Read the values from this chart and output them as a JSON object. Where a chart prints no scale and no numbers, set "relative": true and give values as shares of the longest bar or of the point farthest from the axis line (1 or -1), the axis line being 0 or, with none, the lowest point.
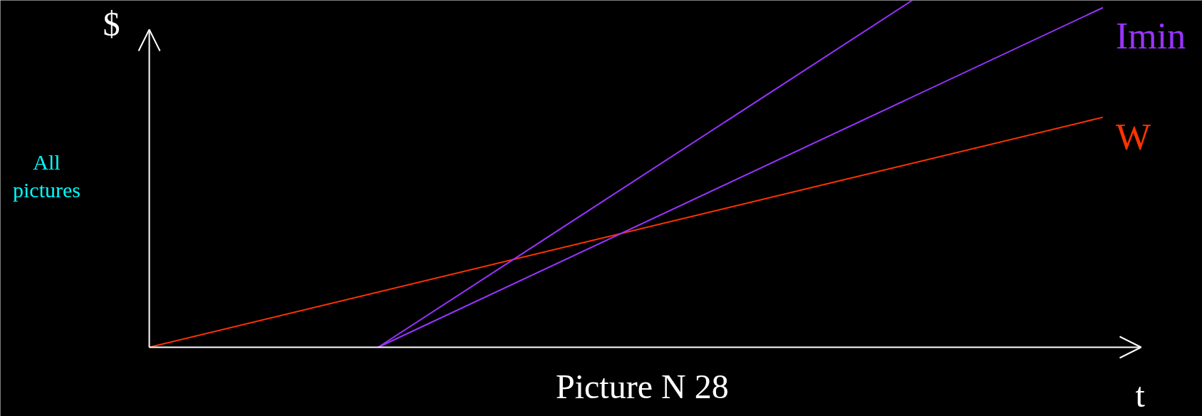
{
  "chart_data": {
    "type": "line",
    "relative": true,
    "xlabel": "t",
    "ylabel": "$",
    "annotations": [
      "Picture N 28",
      "All pictures"
    ],
    "categories": [
      null,
      null,
      null,
      null,
      null,
      null,
      null,
      null,
      null,
      null,
      null,
      null,
      null,
      null,
      null,
      null,
      null,
      null,
      null,
      null,
      null,
      null,
      null,
      null,
      null,
      null
    ],
    "series": [
      {
        "name": "W",
        "color": "#ff3300",
        "values": [
          0,
          null,
          null,
          null,
          null,
          null,
          null,
          null,
          null,
          null,
          null,
          null,
          null,
          null,
          null,
          null,
          null,
          null,
          null,
          null,
          null,
          null,
          null,
          null,
          null,
          0.663
        ]
      },
      {
        "name": "Imin",
        "color": "#9933ff",
        "values": [
          null,
          null,
          null,
          null,
          null,
          null,
          0,
          null,
          null,
          null,
          null,
          null,
          null,
          null,
          null,
          null,
          null,
          null,
          null,
          null,
          null,
          null,
          null,
          null,
          null,
          0.979
        ]
      },
      {
        "color": "#9933ff",
        "values": [
          null,
          null,
          null,
          null,
          null,
          null,
          0,
          null,
          null,
          null,
          null,
          null,
          null,
          null,
          null,
          null,
          null,
          null,
          null,
          null,
          1,
          null,
          null,
          null,
          null,
          null
        ]
      }
    ],
    "tick_labels": false
  }
}
